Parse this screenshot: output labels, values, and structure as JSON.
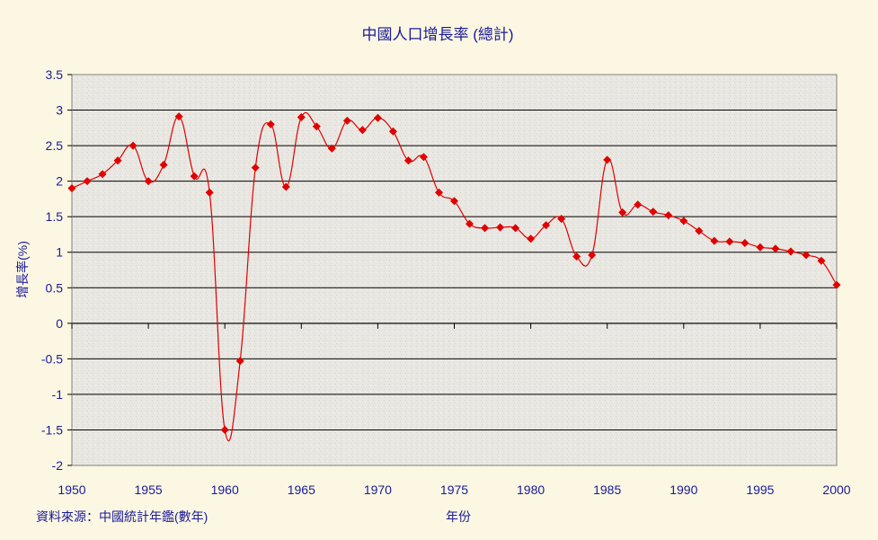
{
  "chart_data": {
    "type": "line",
    "title": "中國人口增長率 (總計)",
    "xlabel": "年份",
    "ylabel": "增長率(%)",
    "source_note": "資料來源：中國統計年鑑(數年)",
    "xlim": [
      1950,
      2000
    ],
    "ylim": [
      -2,
      3.5
    ],
    "x_ticks": [
      "1950",
      "1955",
      "1960",
      "1965",
      "1970",
      "1975",
      "1980",
      "1985",
      "1990",
      "1995",
      "2000"
    ],
    "y_ticks": [
      "3.5",
      "3",
      "2.5",
      "2",
      "1.5",
      "1",
      "0.5",
      "0",
      "-0.5",
      "-1",
      "-1.5",
      "-2"
    ],
    "grid": true,
    "series": [
      {
        "color": "#e00000",
        "x": [
          1950,
          1951,
          1952,
          1953,
          1954,
          1955,
          1956,
          1957,
          1958,
          1959,
          1960,
          1961,
          1962,
          1963,
          1964,
          1965,
          1966,
          1967,
          1968,
          1969,
          1970,
          1971,
          1972,
          1973,
          1974,
          1975,
          1976,
          1977,
          1978,
          1979,
          1980,
          1981,
          1982,
          1983,
          1984,
          1985,
          1986,
          1987,
          1988,
          1989,
          1990,
          1991,
          1992,
          1993,
          1994,
          1995,
          1996,
          1997,
          1998,
          1999,
          2000
        ],
        "values": [
          1.9,
          2.0,
          2.1,
          2.29,
          2.5,
          2.0,
          2.23,
          2.91,
          2.07,
          1.84,
          -1.5,
          -0.53,
          2.19,
          2.8,
          1.92,
          2.9,
          2.77,
          2.46,
          2.85,
          2.72,
          2.89,
          2.7,
          2.29,
          2.34,
          1.84,
          1.72,
          1.4,
          1.34,
          1.35,
          1.34,
          1.19,
          1.38,
          1.47,
          0.94,
          0.96,
          2.3,
          1.56,
          1.67,
          1.57,
          1.52,
          1.44,
          1.3,
          1.16,
          1.15,
          1.13,
          1.07,
          1.05,
          1.01,
          0.96,
          0.88,
          0.54
        ]
      }
    ]
  },
  "colors": {
    "accent": "#e00000",
    "text": "#1a1a9a",
    "plot_bg": "#e8e6e1"
  }
}
